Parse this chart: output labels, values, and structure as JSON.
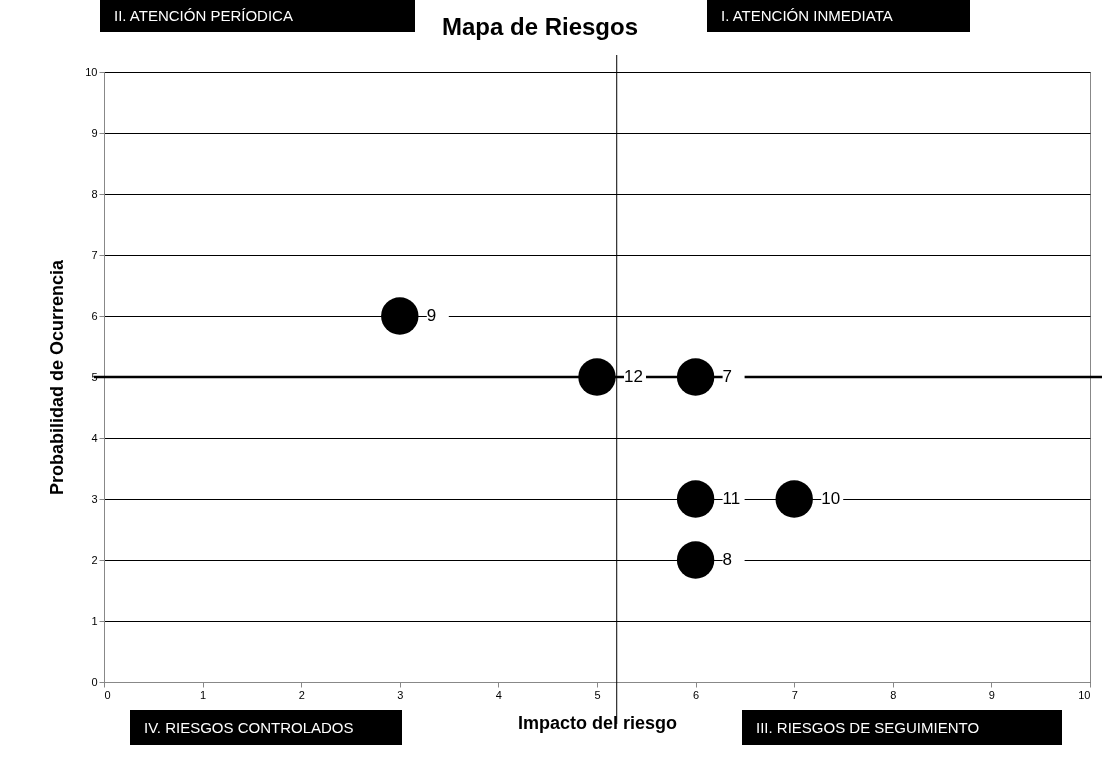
{
  "chart_data": {
    "type": "scatter",
    "title": "Mapa de Riesgos",
    "xlabel": "Impacto del riesgo",
    "ylabel": "Probabilidad de Ocurrencia",
    "x": [
      3,
      5,
      6,
      6,
      7,
      6
    ],
    "series": [
      {
        "color": "#000000",
        "values": [
          6,
          5,
          5,
          3,
          3,
          2
        ]
      }
    ],
    "xlim": [
      0,
      10
    ],
    "xticks": [
      0,
      1,
      2,
      3,
      4,
      5,
      6,
      7,
      8,
      9,
      10
    ],
    "ylim": [
      0,
      10
    ],
    "yticks": [
      0,
      1,
      2,
      3,
      4,
      5,
      6,
      7,
      8,
      9,
      10
    ],
    "grid": "y",
    "marker": "circle",
    "ref_lines": [
      {
        "axis": "x",
        "value": 5.2
      },
      {
        "axis": "y",
        "value": 5
      }
    ],
    "annotations": [
      "II. ATENCIÓN PERÍODICA",
      "I. ATENCIÓN INMEDIATA",
      "IV. RIESGOS CONTROLADOS",
      "III. RIESGOS DE SEGUIMIENTO",
      {
        "text": "9",
        "x": 3,
        "y": 6
      },
      {
        "text": "12",
        "x": 5,
        "y": 5
      },
      {
        "text": "7",
        "x": 6,
        "y": 5
      },
      {
        "text": "11",
        "x": 6,
        "y": 3
      },
      {
        "text": "10",
        "x": 7,
        "y": 3
      },
      {
        "text": "8",
        "x": 6,
        "y": 2
      }
    ]
  }
}
